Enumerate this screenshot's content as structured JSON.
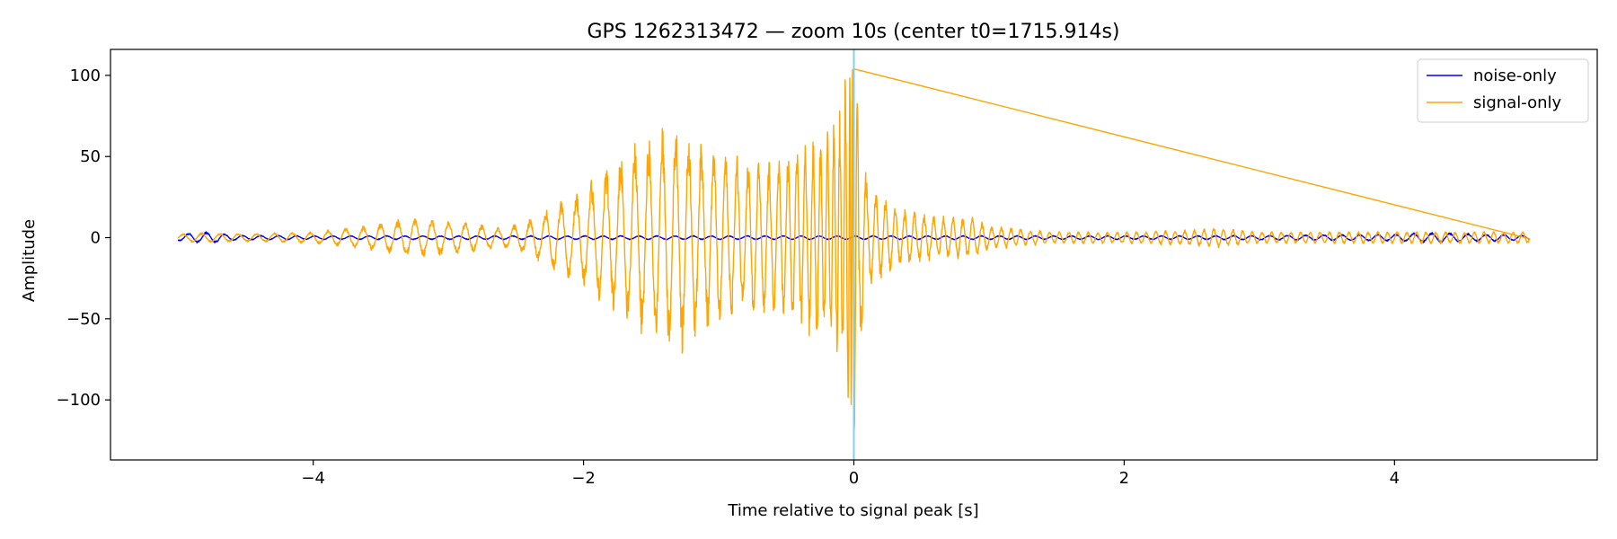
{
  "chart_data": {
    "type": "line",
    "title": "GPS 1262313472 — zoom 10s (center t0=1715.914s)",
    "xlabel": "Time relative to signal peak [s]",
    "ylabel": "Amplitude",
    "xlim": [
      -5.5,
      5.5
    ],
    "ylim": [
      -137,
      116
    ],
    "xticks": [
      -4,
      -2,
      0,
      2,
      4
    ],
    "xtick_labels": [
      "−4",
      "−2",
      "0",
      "2",
      "4"
    ],
    "yticks": [
      100,
      50,
      0,
      -50,
      -100
    ],
    "ytick_labels": [
      "100",
      "50",
      "0",
      "−50",
      "−100"
    ],
    "grid": false,
    "legend_position": "top-right",
    "vline": {
      "x": 0,
      "color": "#87ceeb"
    },
    "series": [
      {
        "name": "noise-only",
        "color": "#0000ff",
        "x": [
          -5.0,
          -4.9,
          -4.8,
          -4.7,
          -4.6,
          -4.5,
          -4.0,
          -3.5,
          -3.0,
          -2.5,
          -2.0,
          -1.5,
          -1.0,
          -0.5,
          0.0,
          0.5,
          1.0,
          1.5,
          2.0,
          2.5,
          3.0,
          3.5,
          4.0,
          4.2,
          4.4,
          4.6,
          4.8,
          5.0
        ],
        "envelope": [
          1.5,
          2.5,
          3.0,
          2.5,
          1.5,
          1.2,
          1.0,
          1.0,
          1.0,
          1.0,
          1.0,
          1.0,
          1.0,
          1.0,
          1.0,
          1.0,
          1.0,
          1.0,
          1.0,
          1.0,
          1.2,
          1.5,
          1.8,
          2.5,
          2.5,
          2.0,
          1.8,
          1.0
        ]
      },
      {
        "name": "signal-only",
        "color": "#ffa500",
        "x": [
          -5.0,
          -4.8,
          -4.5,
          -4.0,
          -3.6,
          -3.3,
          -3.0,
          -2.8,
          -2.6,
          -2.4,
          -2.2,
          -2.0,
          -1.8,
          -1.6,
          -1.4,
          -1.3,
          -1.2,
          -1.0,
          -0.8,
          -0.6,
          -0.4,
          -0.2,
          -0.1,
          -0.05,
          0.0,
          0.05,
          0.1,
          0.3,
          0.6,
          0.9,
          1.0,
          1.5,
          2.0,
          2.5,
          2.7,
          3.0,
          3.5,
          4.0,
          4.5,
          5.0
        ],
        "envelope": [
          2,
          2.5,
          2,
          3,
          6,
          10,
          9,
          7,
          5,
          9,
          18,
          25,
          38,
          48,
          55,
          60,
          50,
          45,
          40,
          38,
          45,
          55,
          65,
          90,
          115,
          60,
          28,
          15,
          11,
          10,
          6,
          3,
          3,
          4,
          5,
          3,
          3,
          3,
          3,
          3
        ]
      }
    ]
  }
}
